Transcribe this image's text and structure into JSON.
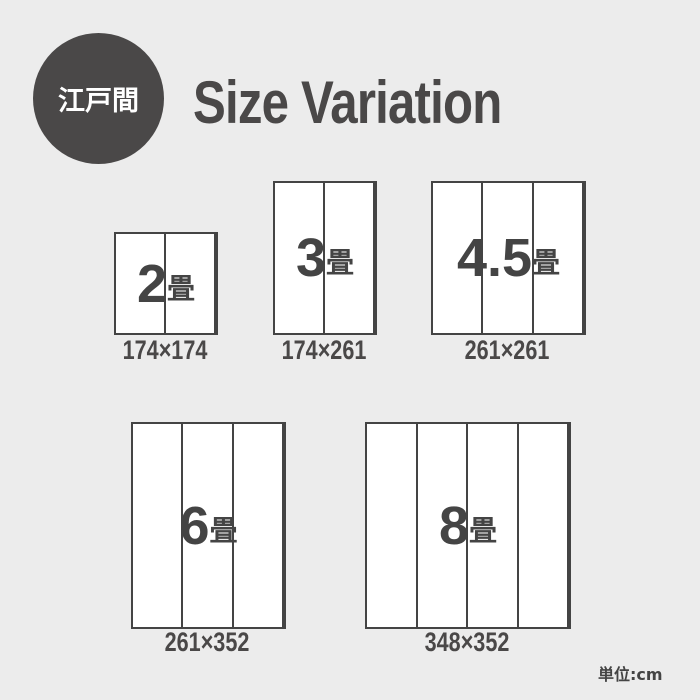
{
  "badge": {
    "label": "江戸間"
  },
  "title": "Size Variation",
  "tatami_unit": "畳",
  "mats": [
    {
      "count": "2",
      "dimensions": "174×174",
      "panels": 2
    },
    {
      "count": "3",
      "dimensions": "174×261",
      "panels": 2
    },
    {
      "count": "4.5",
      "dimensions": "261×261",
      "panels": 3
    },
    {
      "count": "6",
      "dimensions": "261×352",
      "panels": 3
    },
    {
      "count": "8",
      "dimensions": "348×352",
      "panels": 4
    }
  ],
  "unit_note": "単位:cm",
  "colors": {
    "background": "#ececec",
    "badge": "#4a4848",
    "text": "#444444",
    "mat": "#ffffff"
  }
}
